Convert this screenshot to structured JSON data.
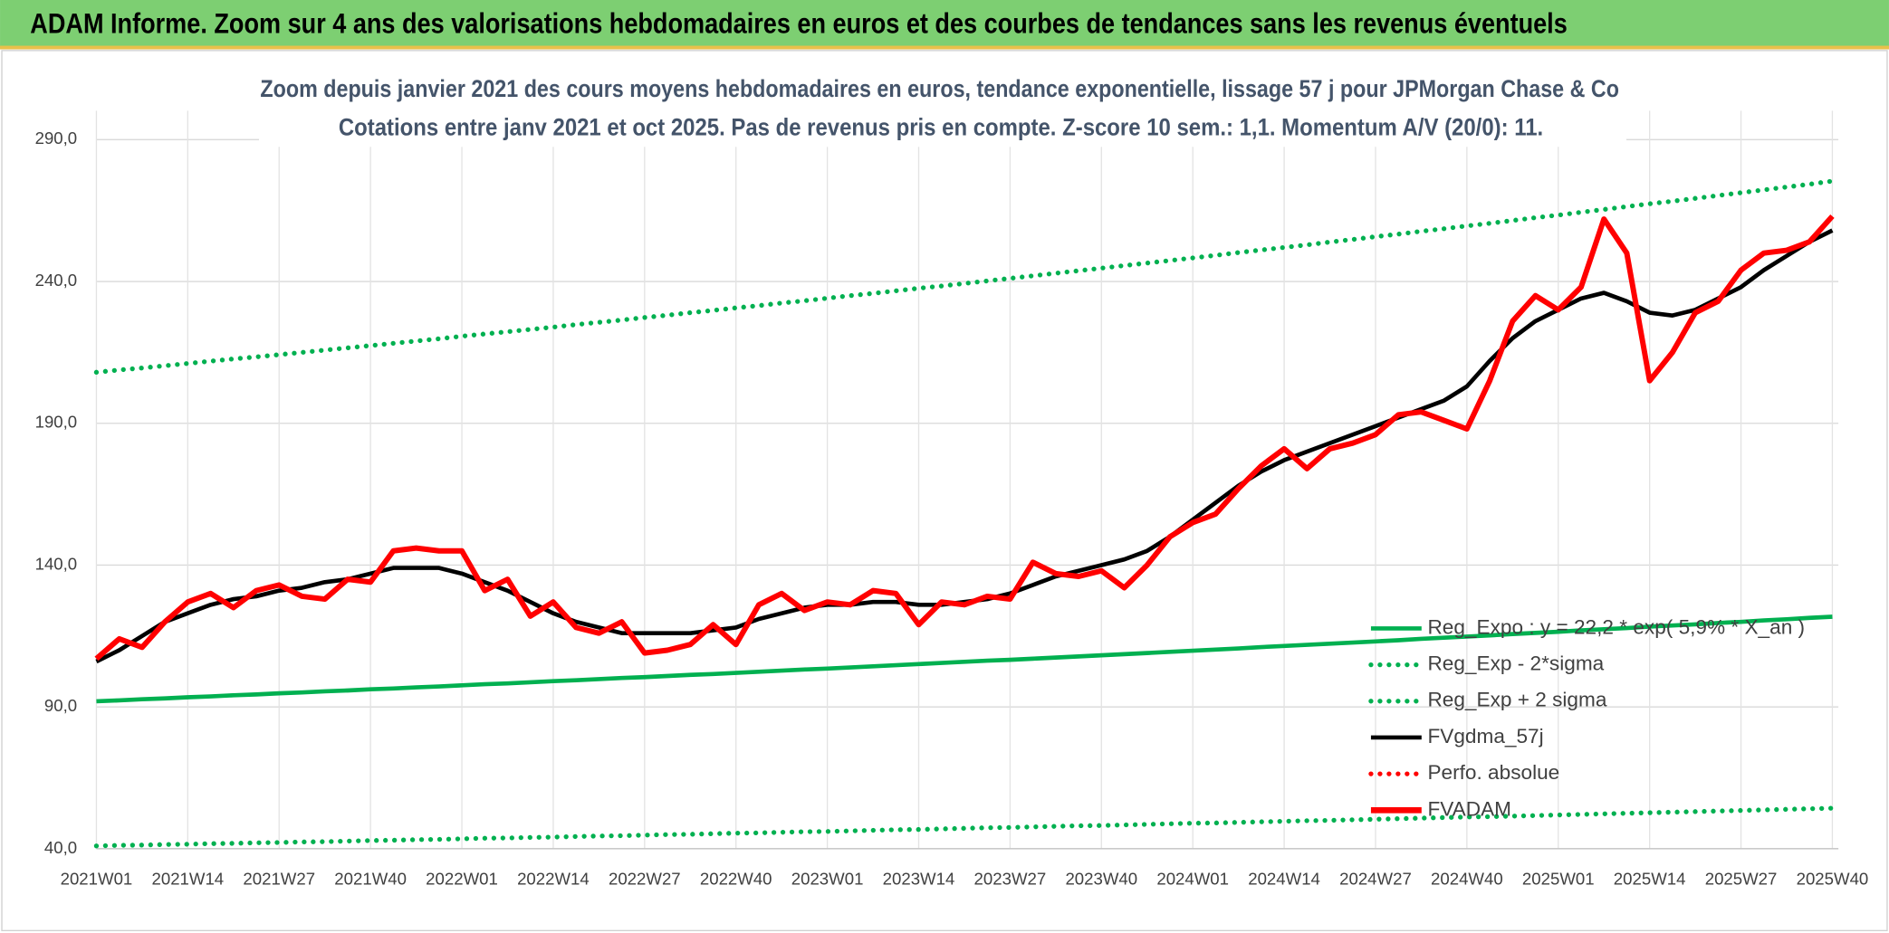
{
  "header": {
    "title": "ADAM Informe. Zoom sur 4 ans des valorisations hebdomadaires en euros et des courbes de tendances sans les revenus éventuels"
  },
  "chart_data": {
    "type": "line",
    "title": "Zoom depuis janvier 2021 des cours moyens hebdomadaires en euros, tendance exponentielle, lissage 57 j pour JPMorgan Chase & Co",
    "subtitle": "Cotations entre janv 2021 et oct 2025. Pas de revenus pris en compte. Z-score 10 sem.: 1,1. Momentum A/V (20/0): 11.",
    "categories": [
      "2021W01",
      null,
      null,
      null,
      "2021W14",
      null,
      null,
      null,
      "2021W27",
      null,
      null,
      null,
      "2021W40",
      null,
      null,
      null,
      "2022W01",
      null,
      null,
      null,
      "2022W14",
      null,
      null,
      null,
      "2022W27",
      null,
      null,
      null,
      "2022W40",
      null,
      null,
      null,
      "2023W01",
      null,
      null,
      null,
      "2023W14",
      null,
      null,
      null,
      "2023W27",
      null,
      null,
      null,
      "2023W40",
      null,
      null,
      null,
      "2024W01",
      null,
      null,
      null,
      "2024W14",
      null,
      null,
      null,
      "2024W27",
      null,
      null,
      null,
      "2024W40",
      null,
      null,
      null,
      "2025W01",
      null,
      null,
      null,
      "2025W14",
      null,
      null,
      null,
      "2025W27",
      null,
      null,
      null,
      "2025W40"
    ],
    "ylim": [
      40,
      290
    ],
    "yticks": [
      {
        "value": 40,
        "label": "40,0"
      },
      {
        "value": 90,
        "label": "90,0"
      },
      {
        "value": 140,
        "label": "140,0"
      },
      {
        "value": 190,
        "label": "190,0"
      },
      {
        "value": 240,
        "label": "240,0"
      },
      {
        "value": 290,
        "label": "290,0"
      }
    ],
    "grid": true,
    "legend": "bottom-right",
    "series": [
      {
        "name": "Reg_Expo : y = 22,2 * exp( 5,9% * X_an )",
        "color": "#00b050",
        "style": "solid",
        "values": [
          92.0,
          92.3,
          92.7,
          93.0,
          93.4,
          93.7,
          94.1,
          94.4,
          94.8,
          95.1,
          95.5,
          95.8,
          96.2,
          96.5,
          96.9,
          97.2,
          97.6,
          98.0,
          98.3,
          98.7,
          99.1,
          99.4,
          99.8,
          100.2,
          100.5,
          100.9,
          101.3,
          101.6,
          102.0,
          102.4,
          102.8,
          103.2,
          103.5,
          103.9,
          104.3,
          104.7,
          105.1,
          105.5,
          105.9,
          106.3,
          106.6,
          107.0,
          107.4,
          107.8,
          108.2,
          108.6,
          109.0,
          109.4,
          109.8,
          110.2,
          110.6,
          111.1,
          111.5,
          111.9,
          112.3,
          112.7,
          113.1,
          113.5,
          114.0,
          114.4,
          114.8,
          115.2,
          115.7,
          116.1,
          116.5,
          117.0,
          117.4,
          117.8,
          118.3,
          118.7,
          119.1,
          119.6,
          120.0,
          120.5,
          120.9,
          121.4,
          121.8
        ]
      },
      {
        "name": "Reg_Exp - 2*sigma",
        "color": "#00b050",
        "style": "dotted",
        "values": [
          41.0,
          41.2,
          41.3,
          41.5,
          41.6,
          41.8,
          41.9,
          42.1,
          42.2,
          42.4,
          42.5,
          42.7,
          42.9,
          43.0,
          43.2,
          43.3,
          43.5,
          43.7,
          43.8,
          44.0,
          44.1,
          44.3,
          44.5,
          44.6,
          44.8,
          45.0,
          45.1,
          45.3,
          45.5,
          45.6,
          45.8,
          46.0,
          46.1,
          46.3,
          46.5,
          46.7,
          46.8,
          47.0,
          47.2,
          47.4,
          47.5,
          47.7,
          47.9,
          48.1,
          48.2,
          48.4,
          48.6,
          48.8,
          49.0,
          49.1,
          49.3,
          49.5,
          49.7,
          49.9,
          50.0,
          50.2,
          50.4,
          50.6,
          50.8,
          51.0,
          51.2,
          51.3,
          51.5,
          51.7,
          51.9,
          52.1,
          52.3,
          52.5,
          52.7,
          52.9,
          53.1,
          53.3,
          53.5,
          53.7,
          53.9,
          54.1,
          54.3
        ]
      },
      {
        "name": "Reg_Exp + 2 sigma",
        "color": "#00b050",
        "style": "dotted",
        "values": [
          208.0,
          208.8,
          209.5,
          210.3,
          211.1,
          211.9,
          212.7,
          213.4,
          214.2,
          215.0,
          215.8,
          216.6,
          217.4,
          218.2,
          219.0,
          219.8,
          220.7,
          221.5,
          222.3,
          223.1,
          223.9,
          224.8,
          225.6,
          226.4,
          227.3,
          228.1,
          229.0,
          229.8,
          230.7,
          231.5,
          232.4,
          233.2,
          234.1,
          235.0,
          235.8,
          236.7,
          237.6,
          238.4,
          239.3,
          240.2,
          241.1,
          242.0,
          242.9,
          243.8,
          244.7,
          245.6,
          246.5,
          247.4,
          248.3,
          249.2,
          250.2,
          251.1,
          252.0,
          252.9,
          253.9,
          254.8,
          255.8,
          256.7,
          257.7,
          258.6,
          259.6,
          260.5,
          261.5,
          262.5,
          263.4,
          264.4,
          265.4,
          266.4,
          267.4,
          268.3,
          269.3,
          270.3,
          271.3,
          272.3,
          273.3,
          274.3,
          275.4
        ]
      },
      {
        "name": "FVgdma_57j",
        "color": "#000000",
        "style": "solid",
        "values": [
          106,
          110,
          115,
          120,
          123,
          126,
          128,
          129,
          131,
          132,
          134,
          135,
          137,
          139,
          139,
          139,
          137,
          134,
          131,
          127,
          123,
          120,
          118,
          116,
          116,
          116,
          116,
          117,
          118,
          121,
          123,
          125,
          126,
          126,
          127,
          127,
          126,
          126,
          127,
          128,
          130,
          133,
          136,
          138,
          140,
          142,
          145,
          150,
          156,
          162,
          168,
          173,
          177,
          180,
          183,
          186,
          189,
          192,
          195,
          198,
          203,
          212,
          220,
          226,
          230,
          234,
          236,
          233,
          229,
          228,
          230,
          234,
          238,
          244,
          249,
          254,
          258
        ]
      },
      {
        "name": "Perfo. absolue",
        "color": "#ff0000",
        "style": "dotted",
        "values": [
          null,
          null,
          null,
          null,
          null,
          null,
          null,
          null,
          null,
          null,
          null,
          null,
          null,
          null,
          null,
          null,
          null,
          null,
          null,
          null,
          null,
          null,
          null,
          null,
          null,
          null,
          null,
          null,
          null,
          null,
          null,
          null,
          null,
          null,
          null,
          null,
          null,
          null,
          null,
          null,
          null,
          null,
          null,
          null,
          null,
          null,
          null,
          null,
          null,
          null,
          null,
          null,
          null,
          null,
          null,
          null,
          null,
          null,
          null,
          null,
          null,
          null,
          null,
          null,
          null,
          null,
          null,
          null,
          null,
          null,
          null,
          null,
          null,
          null,
          null,
          null,
          null
        ]
      },
      {
        "name": "FVADAM",
        "color": "#ff0000",
        "style": "thick",
        "values": [
          107,
          114,
          111,
          120,
          127,
          130,
          125,
          131,
          133,
          129,
          128,
          135,
          134,
          145,
          146,
          145,
          145,
          131,
          135,
          122,
          127,
          118,
          116,
          120,
          109,
          110,
          112,
          119,
          112,
          126,
          130,
          124,
          127,
          126,
          131,
          130,
          119,
          127,
          126,
          129,
          128,
          141,
          137,
          136,
          138,
          132,
          140,
          150,
          155,
          158,
          167,
          175,
          181,
          174,
          181,
          183,
          186,
          193,
          194,
          191,
          188,
          205,
          226,
          235,
          230,
          238,
          262,
          250,
          205,
          215,
          229,
          233,
          244,
          250,
          251,
          254,
          263
        ]
      }
    ]
  }
}
